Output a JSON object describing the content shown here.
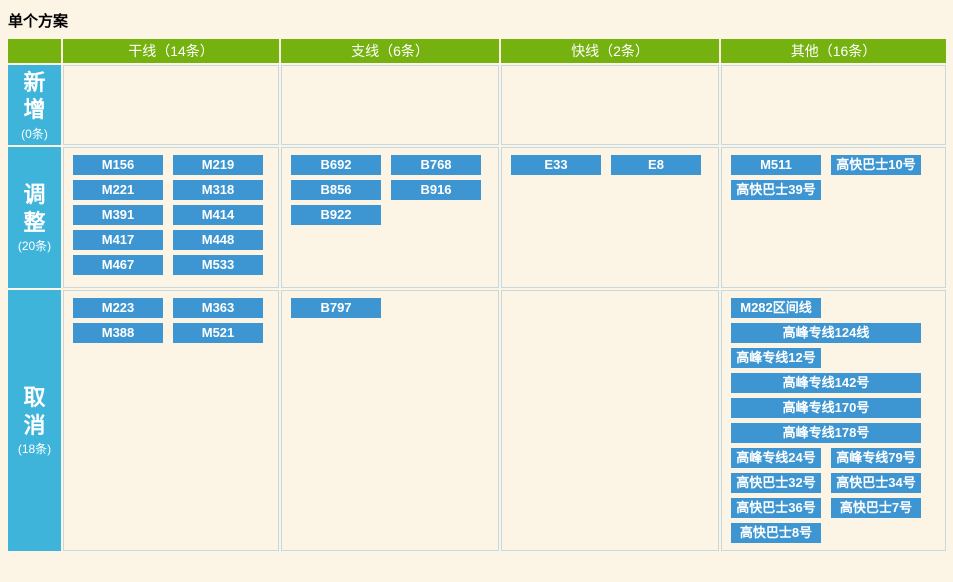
{
  "page": {
    "title": "单个方案"
  },
  "colors": {
    "page_bg": "#FCF5E6",
    "header_green": "#76B20F",
    "row_header_cyan": "#3EB4DB",
    "button_blue": "#3D96D2",
    "cell_border": "#C6D9E1",
    "button_text": "#FFFFFF",
    "title_text": "#000000"
  },
  "table": {
    "columns": [
      {
        "label": "干线（14条）"
      },
      {
        "label": "支线（6条）"
      },
      {
        "label": "快线（2条）"
      },
      {
        "label": "其他（16条）"
      }
    ],
    "rows": [
      {
        "label": "新增",
        "count": "(0条)",
        "cells": [
          [],
          [],
          [],
          []
        ]
      },
      {
        "label": "调整",
        "count": "(20条)",
        "cells": [
          [
            {
              "label": "M156"
            },
            {
              "label": "M219"
            },
            {
              "label": "M221"
            },
            {
              "label": "M318"
            },
            {
              "label": "M391"
            },
            {
              "label": "M414"
            },
            {
              "label": "M417"
            },
            {
              "label": "M448"
            },
            {
              "label": "M467"
            },
            {
              "label": "M533"
            }
          ],
          [
            {
              "label": "B692"
            },
            {
              "label": "B768"
            },
            {
              "label": "B856"
            },
            {
              "label": "B916"
            },
            {
              "label": "B922"
            }
          ],
          [
            {
              "label": "E33"
            },
            {
              "label": "E8"
            }
          ],
          [
            {
              "label": "M511"
            },
            {
              "label": "高快巴士10号"
            },
            {
              "label": "高快巴士39号"
            }
          ]
        ]
      },
      {
        "label": "取消",
        "count": "(18条)",
        "cells": [
          [
            {
              "label": "M223"
            },
            {
              "label": "M363"
            },
            {
              "label": "M388"
            },
            {
              "label": "M521"
            }
          ],
          [
            {
              "label": "B797"
            }
          ],
          [],
          [
            {
              "label": "M282区间线"
            },
            {
              "label": "高峰专线124线",
              "wide": true
            },
            {
              "label": "高峰专线12号"
            },
            {
              "label": "高峰专线142号",
              "wide": true
            },
            {
              "label": "高峰专线170号",
              "wide": true
            },
            {
              "label": "高峰专线178号",
              "wide": true
            },
            {
              "label": "高峰专线24号"
            },
            {
              "label": "高峰专线79号"
            },
            {
              "label": "高快巴士32号"
            },
            {
              "label": "高快巴士34号"
            },
            {
              "label": "高快巴士36号"
            },
            {
              "label": "高快巴士7号"
            },
            {
              "label": "高快巴士8号"
            }
          ]
        ]
      }
    ]
  }
}
